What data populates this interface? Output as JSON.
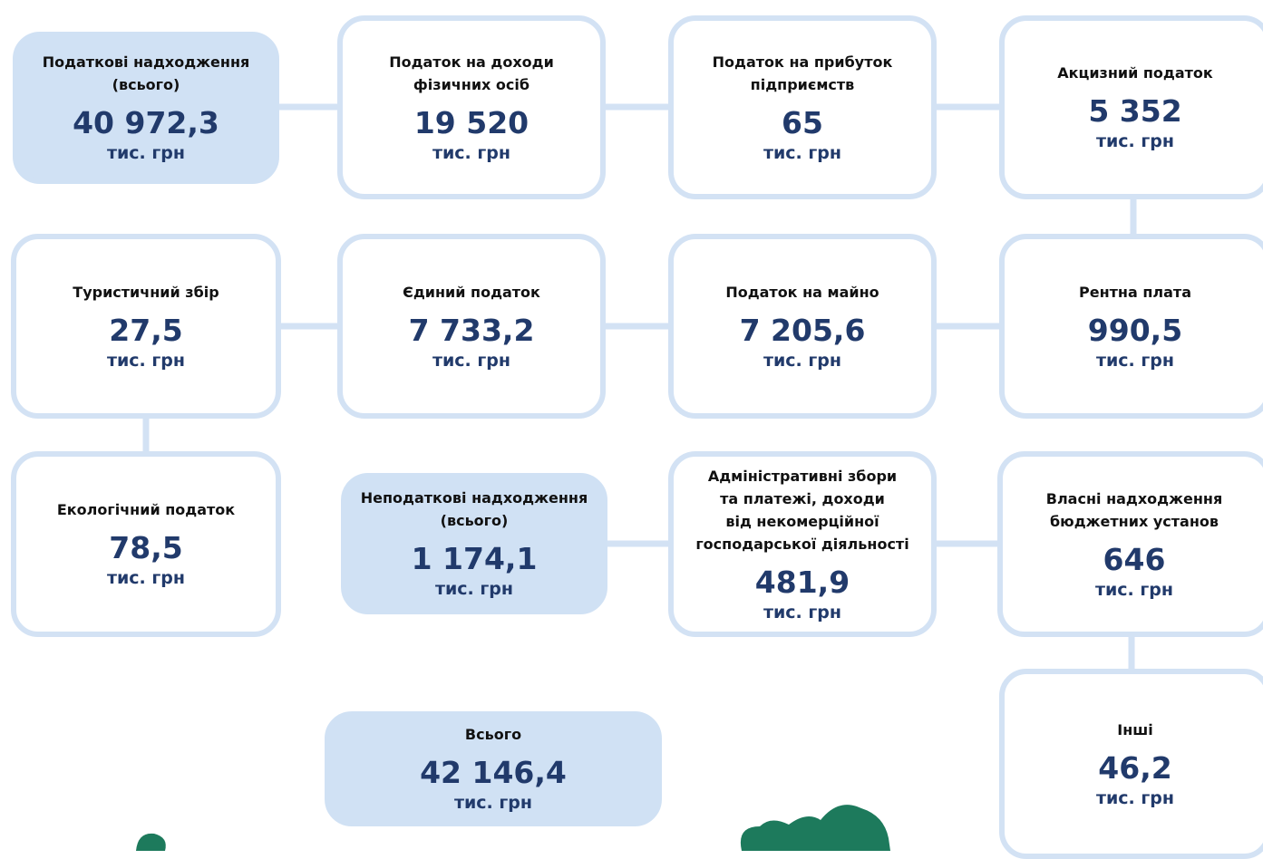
{
  "nodes": [
    {
      "label": [
        "Податкові надходження",
        "(всього)"
      ],
      "value": "40 972,3",
      "unit": "тис. грн"
    },
    {
      "label": [
        "Податок на доходи",
        "фізичних осіб"
      ],
      "value": "19 520",
      "unit": "тис. грн"
    },
    {
      "label": [
        "Податок на прибуток",
        "підприємств"
      ],
      "value": "65",
      "unit": "тис. грн"
    },
    {
      "label": [
        "Акцизний податок"
      ],
      "value": "5 352",
      "unit": "тис. грн"
    },
    {
      "label": [
        "Туристичний збір"
      ],
      "value": "27,5",
      "unit": "тис. грн"
    },
    {
      "label": [
        "Єдиний податок"
      ],
      "value": "7 733,2",
      "unit": "тис. грн"
    },
    {
      "label": [
        "Податок на майно"
      ],
      "value": "7 205,6",
      "unit": "тис. грн"
    },
    {
      "label": [
        "Рентна плата"
      ],
      "value": "990,5",
      "unit": "тис. грн"
    },
    {
      "label": [
        "Екологічний податок"
      ],
      "value": "78,5",
      "unit": "тис. грн"
    },
    {
      "label": [
        "Неподаткові надходження",
        "(всього)"
      ],
      "value": "1 174,1",
      "unit": "тис. грн"
    },
    {
      "label": [
        "Адміністративні збори",
        "та платежі, доходи",
        "від некомерційної",
        "господарської діяльності"
      ],
      "value": "481,9",
      "unit": "тис. грн"
    },
    {
      "label": [
        "Власні надходження",
        "бюджетних установ"
      ],
      "value": "646",
      "unit": "тис. грн"
    },
    {
      "label": [
        "Всього"
      ],
      "value": "42 146,4",
      "unit": "тис. грн"
    },
    {
      "label": [
        "Інші"
      ],
      "value": "46,2",
      "unit": "тис. грн"
    }
  ]
}
